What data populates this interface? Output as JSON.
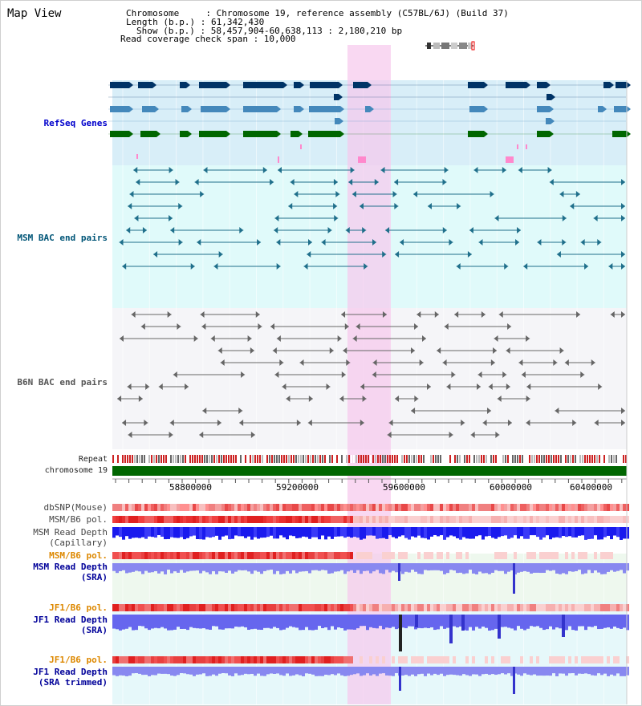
{
  "view": {
    "title": "Map View",
    "header_lines": [
      "Chromosome     : Chromosome 19, reference assembly (C57BL/6J) (Build 37)",
      "Length (b.p.) : 61,342,430",
      "Show (b.p.) : 58,457,904-60,638,113 : 2,180,210 bp",
      "Read coverage check span : 10,000"
    ]
  },
  "tracks": {
    "refseq": {
      "label": "RefSeq Genes",
      "color": "#0000cc"
    },
    "msm_bac": {
      "label": "MSM BAC end pairs",
      "color": "#005577"
    },
    "b6n_bac": {
      "label": "B6N BAC end pairs",
      "color": "#555555"
    },
    "repeat": {
      "label": "Repeat"
    },
    "chromosome": {
      "label": "chromosome 19",
      "color": "#006600"
    },
    "dbsnp": {
      "label": "dbSNP(Mouse)"
    },
    "msm_pol": {
      "label": "MSM/B6 pol."
    },
    "msm_depth_cap": {
      "label1": "MSM Read Depth",
      "label2": "(Capillary)"
    },
    "msm_pol2": {
      "label": "MSM/B6 pol.",
      "color": "#dd8800"
    },
    "msm_depth_sra": {
      "label1": "MSM Read Depth",
      "label2": "(SRA)",
      "color": "#000099"
    },
    "jf1_pol": {
      "label": "JF1/B6 pol.",
      "color": "#dd8800"
    },
    "jf1_depth": {
      "label1": "JF1 Read Depth",
      "label2": "(SRA)",
      "color": "#000099"
    },
    "jf1_pol2": {
      "label": "JF1/B6 pol.",
      "color": "#dd8800"
    },
    "jf1_depth_trim": {
      "label1": "JF1 Read Depth",
      "label2": "(SRA trimmed)",
      "color": "#000099"
    }
  },
  "axis": {
    "ticks": [
      "58800000",
      "59200000",
      "59600000",
      "60000000",
      "60400000"
    ]
  }
}
